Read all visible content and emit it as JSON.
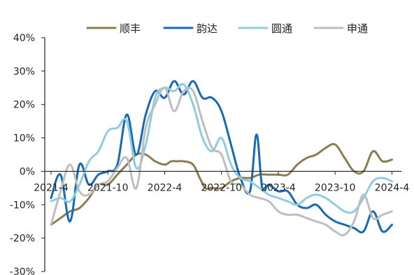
{
  "chart_data": {
    "type": "line",
    "title": "",
    "xlabel": "",
    "ylabel": "",
    "ylim": [
      -30,
      40
    ],
    "yticks": [
      -30,
      -20,
      -10,
      0,
      10,
      20,
      30,
      40
    ],
    "ytick_labels": [
      "-30%",
      "-20%",
      "-10%",
      "0%",
      "10%",
      "20%",
      "30%",
      "40%"
    ],
    "xlim": [
      0,
      37
    ],
    "xticks": [
      {
        "x": 0,
        "label": "2021-4"
      },
      {
        "x": 6,
        "label": "2021-10"
      },
      {
        "x": 12,
        "label": "2022-4"
      },
      {
        "x": 18,
        "label": "2022-10"
      },
      {
        "x": 24,
        "label": "2023-4"
      },
      {
        "x": 30,
        "label": "2023-10"
      },
      {
        "x": 36,
        "label": "2024-4"
      }
    ],
    "grid": false,
    "legend_position": "top",
    "series": [
      {
        "name": "顺丰",
        "color": "#8B7D52",
        "points": [
          [
            0,
            -16
          ],
          [
            1,
            -14
          ],
          [
            2,
            -12
          ],
          [
            3,
            -11
          ],
          [
            4,
            -8
          ],
          [
            5,
            -4
          ],
          [
            6,
            -4
          ],
          [
            7,
            -1
          ],
          [
            8,
            2
          ],
          [
            9,
            5
          ],
          [
            10,
            5
          ],
          [
            11,
            3
          ],
          [
            12,
            2
          ],
          [
            12.7,
            3
          ],
          [
            13.3,
            3
          ],
          [
            14,
            3
          ],
          [
            15,
            2
          ],
          [
            15.7,
            -2
          ],
          [
            16.3,
            -5
          ],
          [
            17,
            -5
          ],
          [
            18,
            -5
          ],
          [
            19,
            -3
          ],
          [
            20,
            -2
          ],
          [
            21,
            -2
          ],
          [
            22,
            -1
          ],
          [
            23,
            -1
          ],
          [
            24,
            -1
          ],
          [
            25,
            -1
          ],
          [
            26,
            2
          ],
          [
            27,
            4
          ],
          [
            28,
            5
          ],
          [
            29,
            7
          ],
          [
            30,
            8
          ],
          [
            31,
            4
          ],
          [
            32,
            0
          ],
          [
            33,
            0
          ],
          [
            34,
            6
          ],
          [
            35,
            3
          ],
          [
            36,
            3.5
          ]
        ]
      },
      {
        "name": "韵达",
        "color": "#1769B6",
        "points": [
          [
            0,
            -8
          ],
          [
            1,
            -1
          ],
          [
            2,
            -15
          ],
          [
            3,
            2
          ],
          [
            4,
            -4
          ],
          [
            5,
            -1
          ],
          [
            6,
            0
          ],
          [
            7,
            2
          ],
          [
            8,
            17
          ],
          [
            9,
            5
          ],
          [
            10,
            17
          ],
          [
            11,
            24
          ],
          [
            12,
            22
          ],
          [
            13,
            27
          ],
          [
            14,
            23
          ],
          [
            15,
            27
          ],
          [
            16,
            22
          ],
          [
            17,
            22
          ],
          [
            18,
            18
          ],
          [
            19,
            8
          ],
          [
            20,
            -2
          ],
          [
            21,
            -6
          ],
          [
            21.7,
            11
          ],
          [
            22.3,
            -5
          ],
          [
            23,
            -4
          ],
          [
            24,
            -6
          ],
          [
            25,
            -6
          ],
          [
            26,
            -10
          ],
          [
            27,
            -11
          ],
          [
            28,
            -10
          ],
          [
            29,
            -13
          ],
          [
            30,
            -15
          ],
          [
            31,
            -16
          ],
          [
            32,
            -17
          ],
          [
            33,
            -18
          ],
          [
            34,
            -12
          ],
          [
            35,
            -18
          ],
          [
            36,
            -16
          ]
        ]
      },
      {
        "name": "圆通",
        "color": "#8FCDE0",
        "points": [
          [
            0,
            -9
          ],
          [
            1,
            -8
          ],
          [
            2,
            -9
          ],
          [
            3,
            -4
          ],
          [
            4,
            3
          ],
          [
            5,
            6
          ],
          [
            6,
            12
          ],
          [
            7,
            13
          ],
          [
            8,
            15
          ],
          [
            9,
            1
          ],
          [
            10,
            8
          ],
          [
            11,
            22
          ],
          [
            12,
            25
          ],
          [
            13,
            24
          ],
          [
            14,
            26
          ],
          [
            15,
            20
          ],
          [
            16,
            10
          ],
          [
            17,
            6
          ],
          [
            18,
            10
          ],
          [
            19,
            2
          ],
          [
            20,
            -2
          ],
          [
            21,
            -3
          ],
          [
            22,
            -5
          ],
          [
            23,
            -7
          ],
          [
            24,
            -8
          ],
          [
            25,
            -9
          ],
          [
            26,
            -10
          ],
          [
            27,
            -8
          ],
          [
            28,
            -7
          ],
          [
            29,
            -8
          ],
          [
            30,
            -10
          ],
          [
            31,
            -12
          ],
          [
            32,
            -12
          ],
          [
            33,
            -8
          ],
          [
            34,
            -3
          ],
          [
            35,
            -2
          ],
          [
            36,
            -3
          ]
        ]
      },
      {
        "name": "申通",
        "color": "#BEBEBE",
        "points": [
          [
            0,
            -16
          ],
          [
            1,
            -6
          ],
          [
            2,
            2
          ],
          [
            3,
            -6
          ],
          [
            4,
            -7
          ],
          [
            5,
            -4
          ],
          [
            6,
            -3
          ],
          [
            7,
            1
          ],
          [
            8,
            4
          ],
          [
            9,
            -5
          ],
          [
            10,
            13
          ],
          [
            11,
            20
          ],
          [
            12,
            25
          ],
          [
            13,
            18
          ],
          [
            14,
            24
          ],
          [
            15,
            24
          ],
          [
            16,
            15
          ],
          [
            17,
            7
          ],
          [
            18,
            5
          ],
          [
            19,
            -3
          ],
          [
            20,
            -4
          ],
          [
            21,
            -7
          ],
          [
            22,
            -8
          ],
          [
            23,
            -9
          ],
          [
            24,
            -12
          ],
          [
            25,
            -13
          ],
          [
            26,
            -13
          ],
          [
            27,
            -14
          ],
          [
            28,
            -15
          ],
          [
            29,
            -16
          ],
          [
            30,
            -18
          ],
          [
            31,
            -19
          ],
          [
            32,
            -15
          ],
          [
            33,
            -7
          ],
          [
            34,
            -14
          ],
          [
            35,
            -13
          ],
          [
            36,
            -12
          ]
        ]
      }
    ]
  }
}
